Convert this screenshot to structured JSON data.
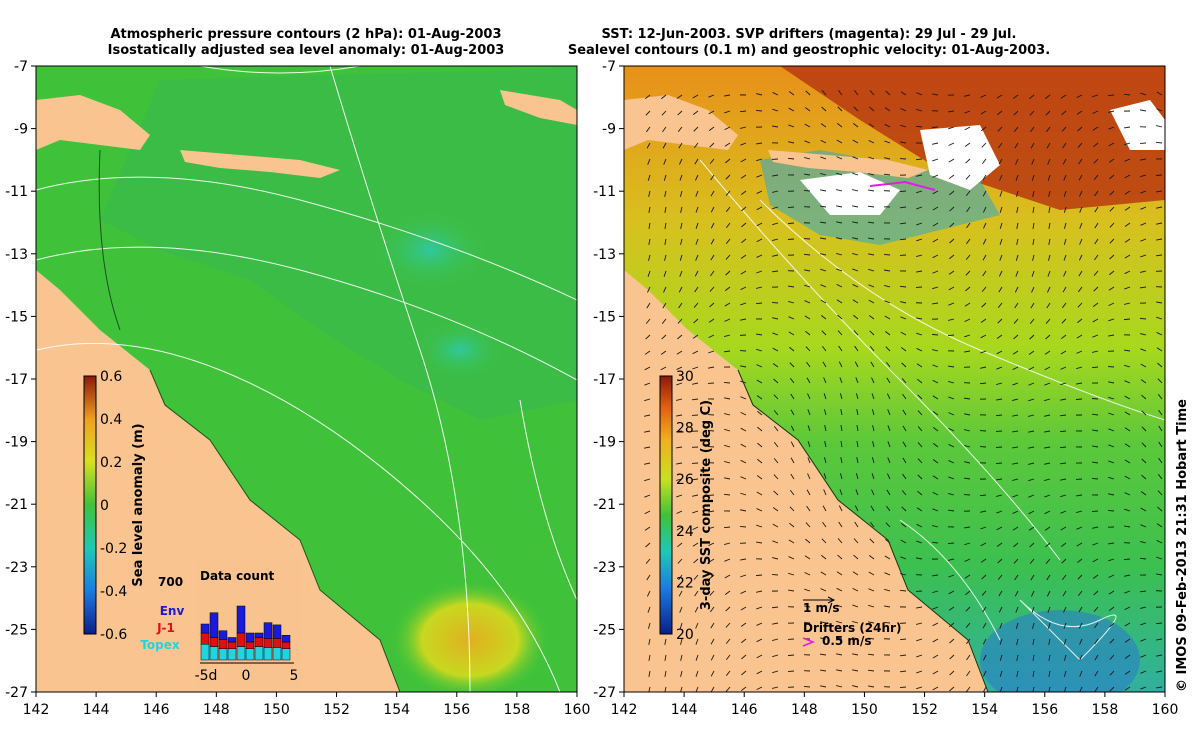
{
  "left": {
    "title_line1": "Atmospheric pressure contours (2 hPa): 01-Aug-2003",
    "title_line2": "Isostatically adjusted sea level anomaly: 01-Aug-2003",
    "colorbar_label": "Sea level anomaly (m)",
    "colorbar_ticks": [
      "0.6",
      "0.4",
      "0.2",
      "0",
      "-0.2",
      "-0.4",
      "-0.6"
    ],
    "inset": {
      "title": "Data count",
      "max_label": "700",
      "x_ticks": [
        "-5d",
        "0",
        "5"
      ],
      "legend": [
        {
          "label": "Env",
          "color": "#1a1ad9"
        },
        {
          "label": "J-1",
          "color": "#e01010"
        },
        {
          "label": "Topex",
          "color": "#22d3e0"
        }
      ],
      "bars": [
        {
          "env": 0.2,
          "j1": 0.25,
          "topex": 0.35
        },
        {
          "env": 0.55,
          "j1": 0.2,
          "topex": 0.3
        },
        {
          "env": 0.2,
          "j1": 0.2,
          "topex": 0.25
        },
        {
          "env": 0.1,
          "j1": 0.15,
          "topex": 0.25
        },
        {
          "env": 0.6,
          "j1": 0.3,
          "topex": 0.3
        },
        {
          "env": 0.2,
          "j1": 0.15,
          "topex": 0.25
        },
        {
          "env": 0.1,
          "j1": 0.2,
          "topex": 0.3
        },
        {
          "env": 0.35,
          "j1": 0.2,
          "topex": 0.28
        },
        {
          "env": 0.3,
          "j1": 0.2,
          "topex": 0.28
        },
        {
          "env": 0.15,
          "j1": 0.15,
          "topex": 0.25
        }
      ]
    }
  },
  "right": {
    "title_line1": "SST: 12-Jun-2003. SVP drifters (magenta): 29 Jul - 29 Jul.",
    "title_line2": "Sealevel contours (0.1 m) and geostrophic velocity: 01-Aug-2003.",
    "colorbar_label": "3-day SST composite (deg C)",
    "colorbar_ticks": [
      "30",
      "28",
      "26",
      "24",
      "22",
      "20"
    ],
    "velocity_scale_label": "1 m/s",
    "drifters_label": "Drifters (24hr)",
    "drifter_scale_label": "0.5 m/s"
  },
  "y_ticks": [
    "-7",
    "-9",
    "-11",
    "-13",
    "-15",
    "-17",
    "-19",
    "-21",
    "-23",
    "-25",
    "-27"
  ],
  "x_ticks": [
    "142",
    "144",
    "146",
    "148",
    "150",
    "152",
    "154",
    "156",
    "158",
    "160"
  ],
  "credit": "© IMOS 09-Feb-2013 21:31 Hobart Time",
  "colors": {
    "land": "#f9c48f",
    "ocean_left": "#3fc23a",
    "ocean_right_warm": "#e8951a",
    "ocean_right_mid": "#a8d81e",
    "cloud": "#ffffff",
    "drifter": "#e020e0"
  }
}
